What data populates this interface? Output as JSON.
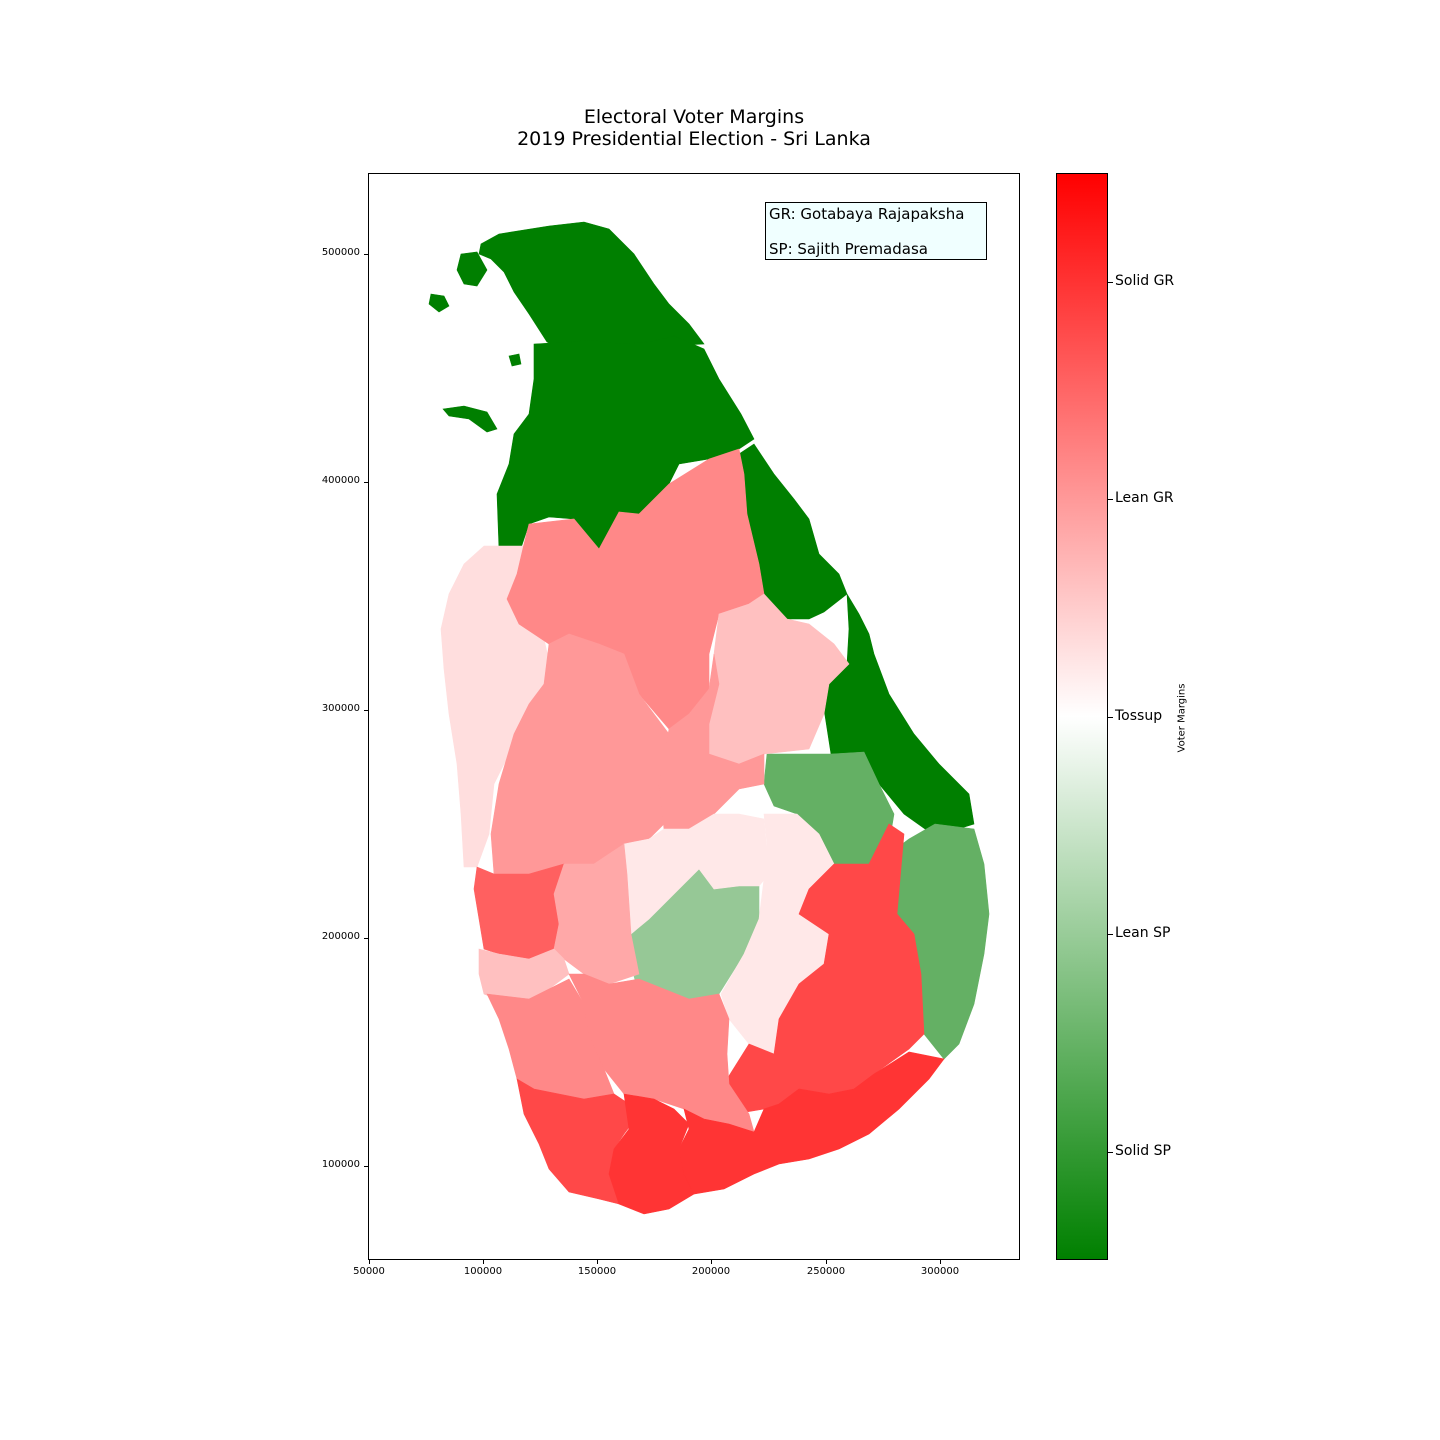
{
  "title": {
    "line1": "Electoral Voter Margins",
    "line2": "2019 Presidential Election - Sri Lanka"
  },
  "legend": {
    "gr": "GR: Gotabaya Rajapaksha",
    "sp": "SP: Sajith Premadasa"
  },
  "axes": {
    "x_ticks": [
      "50000",
      "100000",
      "150000",
      "200000",
      "250000",
      "300000"
    ],
    "y_ticks": [
      "100000",
      "200000",
      "300000",
      "400000",
      "500000"
    ]
  },
  "colorbar": {
    "label": "Voter Margins",
    "ticks": [
      "Solid GR",
      "Lean GR",
      "Tossup",
      "Lean SP",
      "Solid SP"
    ],
    "colors": {
      "top": "#ff0000",
      "middle": "#ffffff",
      "bottom": "#008000"
    }
  },
  "colors": {
    "solid_sp": "#007f00",
    "mid_sp": "#64b064",
    "lean_sp": "#96c896",
    "solid_gr_strong": "#ff3434",
    "solid_gr": "#ff4848",
    "gr_medium": "#ff6060",
    "gr_lean_strong": "#ff8888",
    "gr_lean": "#ff9898",
    "gr_lean_light": "#ffa8a8",
    "gr_tilt": "#ffc0c0",
    "gr_tilt_light": "#ffdede",
    "near_tossup": "#ffe8e8"
  }
}
